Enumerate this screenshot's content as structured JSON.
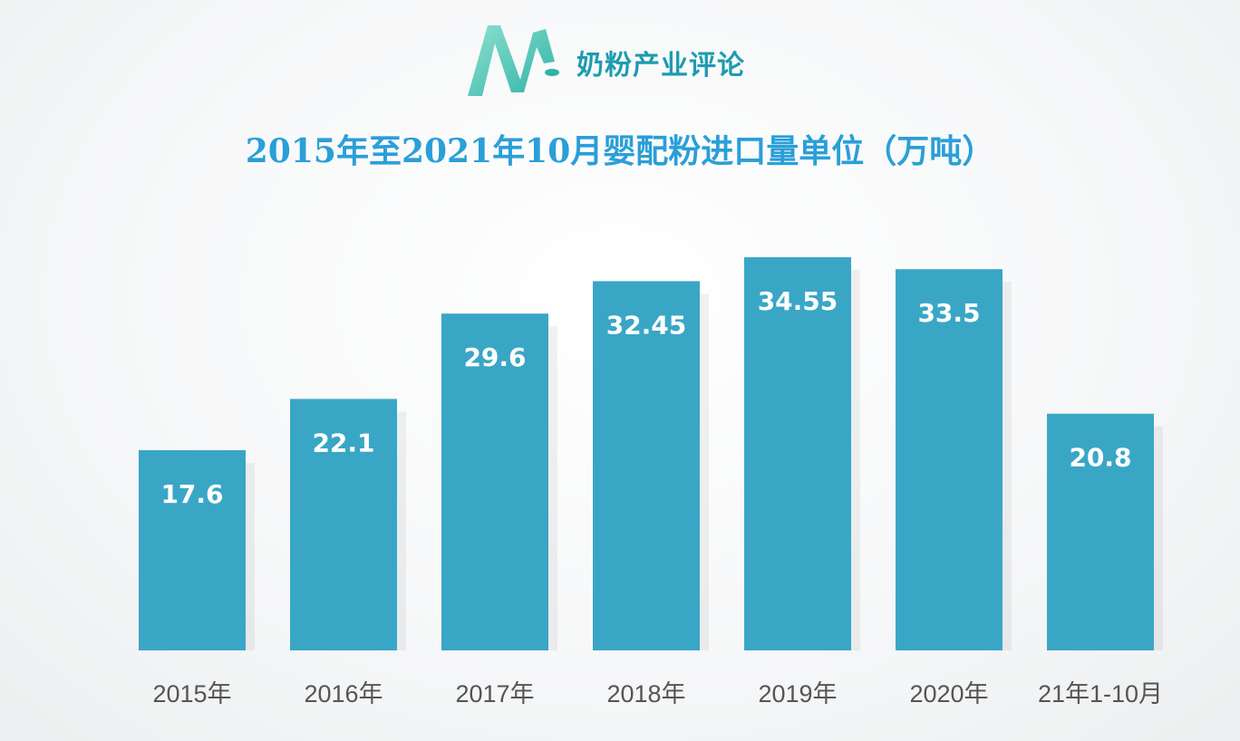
{
  "logo": {
    "text": "奶粉产业评论",
    "color": "#1e9bb0"
  },
  "chart_data": {
    "type": "bar",
    "title": "2015年至2021年10月婴配粉进口量单位（万吨）",
    "categories": [
      "2015年",
      "2016年",
      "2017年",
      "2018年",
      "2019年",
      "2020年",
      "21年1-10月"
    ],
    "values": [
      17.6,
      22.1,
      29.6,
      32.45,
      34.55,
      33.5,
      20.8
    ],
    "data_labels": [
      "17.6",
      "22.1",
      "29.6",
      "32.45",
      "34.55",
      "33.5",
      "20.8"
    ],
    "xlabel": "",
    "ylabel": "",
    "ylim": [
      0,
      36
    ],
    "grid": false,
    "bar_color": "#3aa6c6",
    "title_color": "#2a9fd8"
  }
}
